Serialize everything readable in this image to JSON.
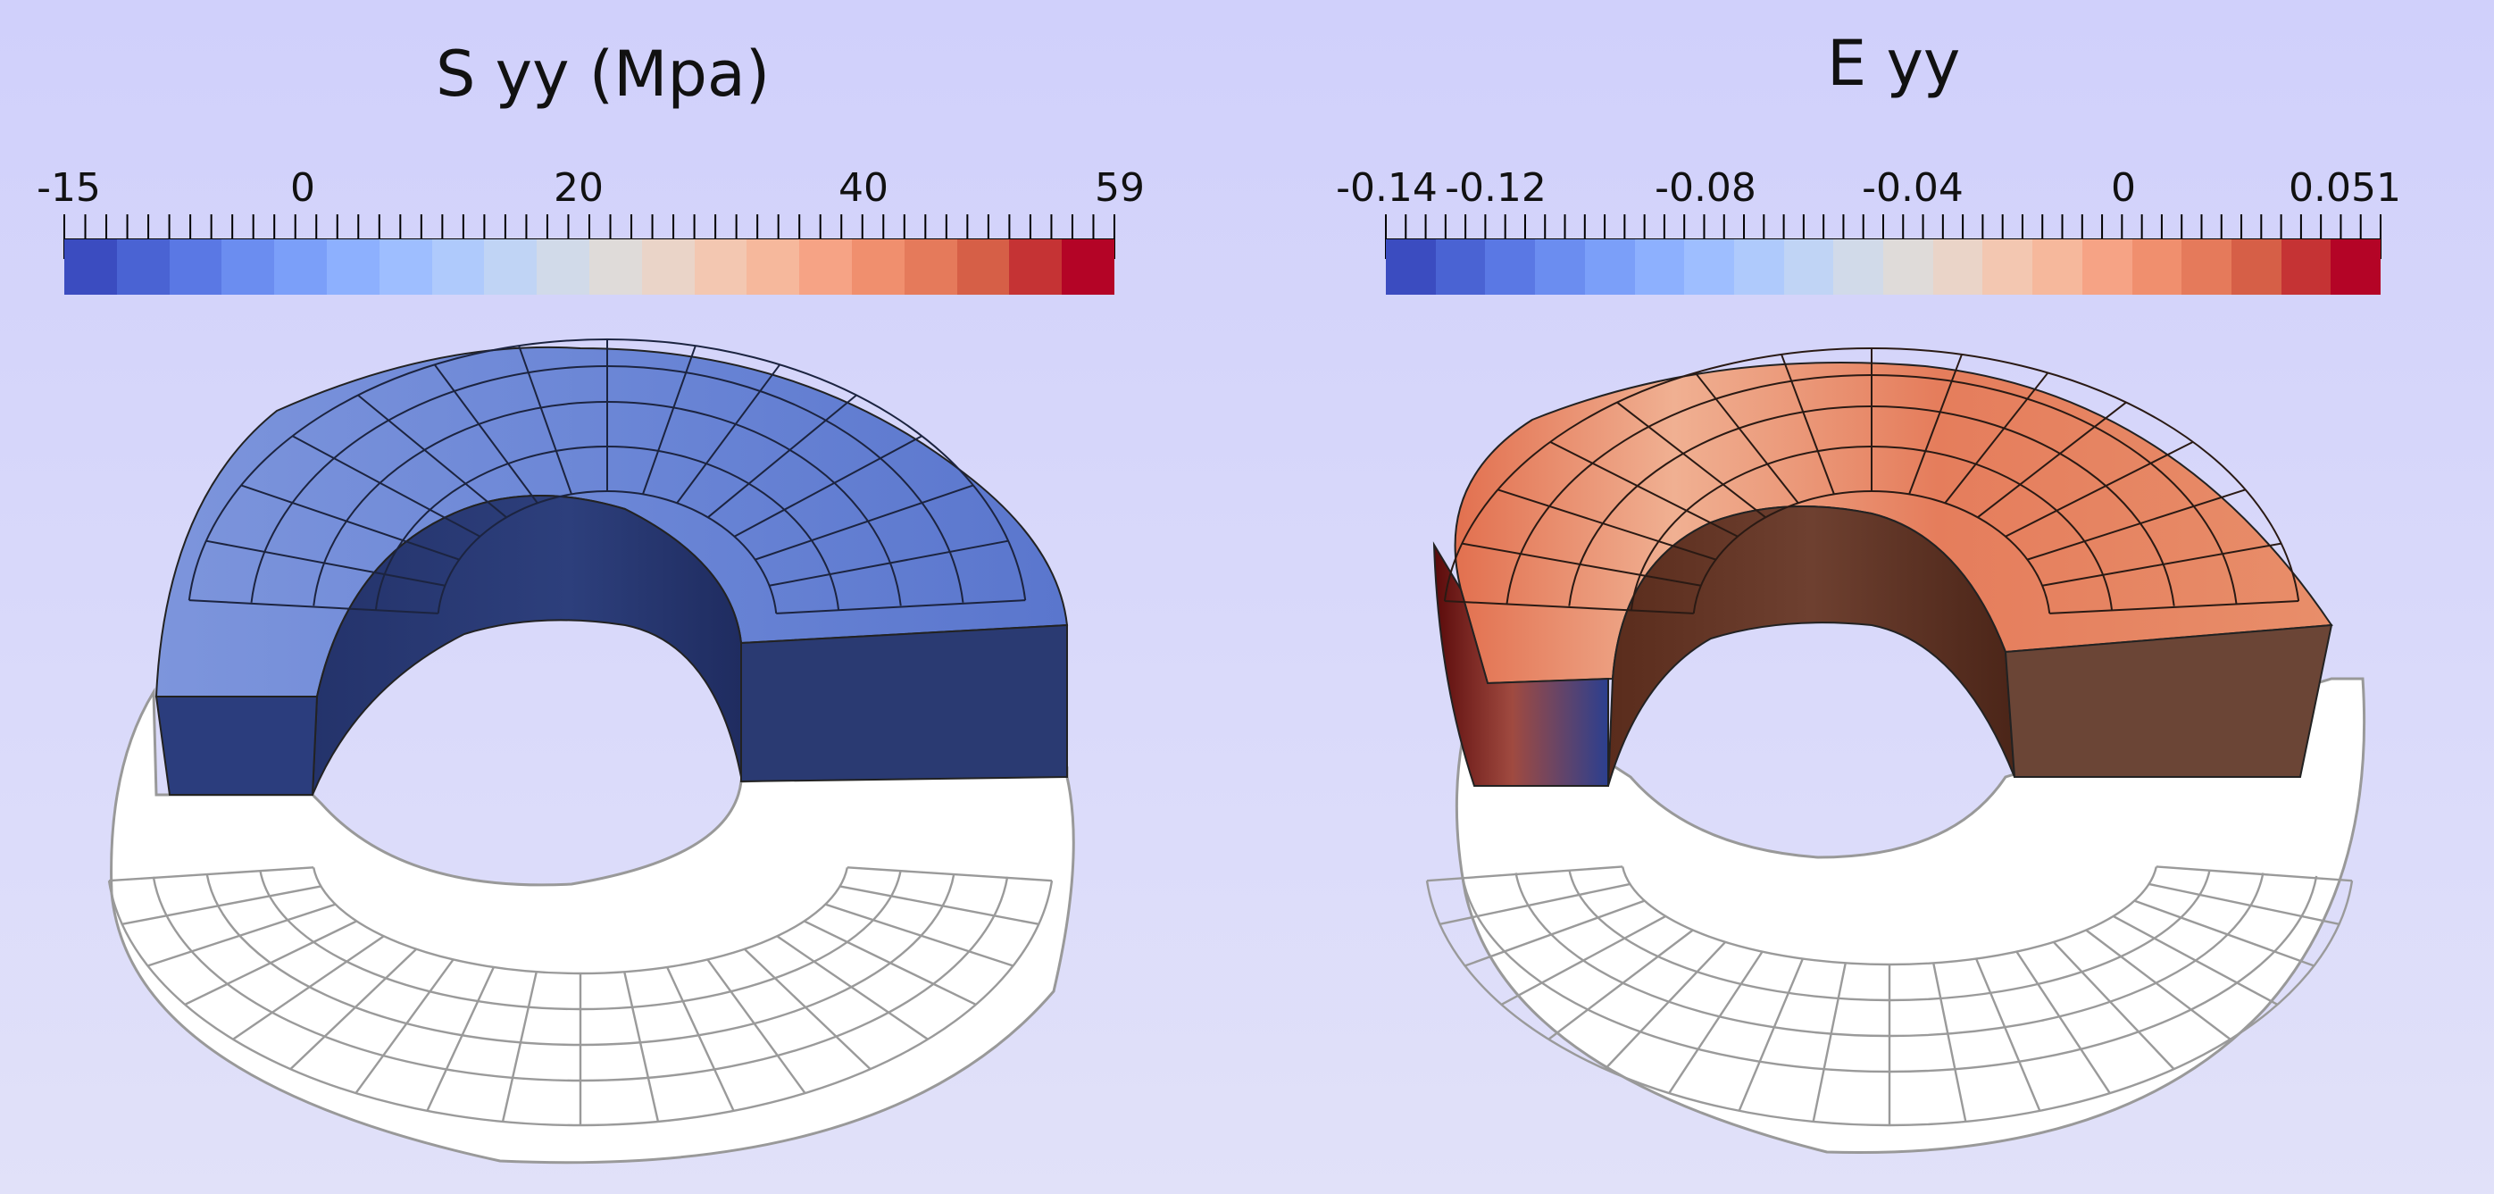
{
  "left": {
    "title": "S yy (Mpa)",
    "tick_labels": [
      "-15",
      "0",
      "20",
      "40",
      "59"
    ],
    "colors": [
      "#3b4cc0",
      "#4a63d3",
      "#5a78e4",
      "#6b8df0",
      "#7b9ff9",
      "#8db0fe",
      "#9ebeff",
      "#afcafc",
      "#c0d4f5",
      "#d1dae9",
      "#dfdbd9",
      "#ead4c8",
      "#f3c7b1",
      "#f6b89c",
      "#f6a385",
      "#f08f6e",
      "#e57a5b",
      "#d65f47",
      "#c53334",
      "#b40426"
    ]
  },
  "right": {
    "title": "E yy",
    "tick_labels": [
      "-0.14",
      "-0.12",
      "-0.08",
      "-0.04",
      "0",
      "0.051"
    ],
    "colors": [
      "#3b4cc0",
      "#4a63d3",
      "#5a78e4",
      "#6b8df0",
      "#7b9ff9",
      "#8db0fe",
      "#9ebeff",
      "#afcafc",
      "#c0d4f5",
      "#d1dae9",
      "#dfdbd9",
      "#ead4c8",
      "#f3c7b1",
      "#f6b89c",
      "#f6a385",
      "#f08f6e",
      "#e57a5b",
      "#d65f47",
      "#c53334",
      "#b40426"
    ]
  }
}
